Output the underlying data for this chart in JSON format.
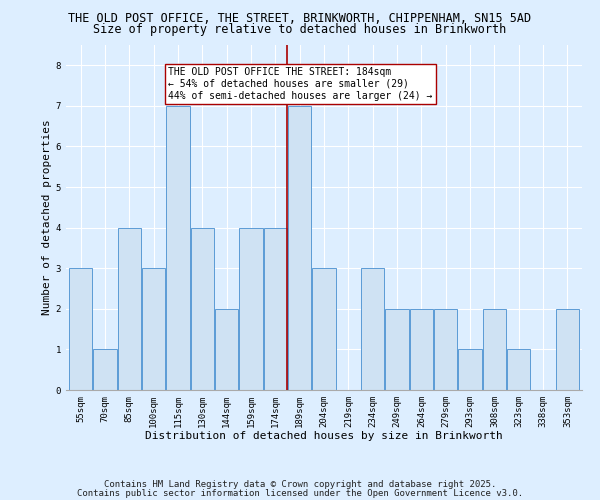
{
  "title1": "THE OLD POST OFFICE, THE STREET, BRINKWORTH, CHIPPENHAM, SN15 5AD",
  "title2": "Size of property relative to detached houses in Brinkworth",
  "xlabel": "Distribution of detached houses by size in Brinkworth",
  "ylabel": "Number of detached properties",
  "categories": [
    "55sqm",
    "70sqm",
    "85sqm",
    "100sqm",
    "115sqm",
    "130sqm",
    "144sqm",
    "159sqm",
    "174sqm",
    "189sqm",
    "204sqm",
    "219sqm",
    "234sqm",
    "249sqm",
    "264sqm",
    "279sqm",
    "293sqm",
    "308sqm",
    "323sqm",
    "338sqm",
    "353sqm"
  ],
  "values": [
    3,
    1,
    4,
    3,
    7,
    4,
    2,
    4,
    4,
    7,
    3,
    0,
    3,
    2,
    2,
    2,
    1,
    2,
    1,
    0,
    2
  ],
  "bar_color": "#cfe2f3",
  "bar_edge_color": "#5b9bd5",
  "red_line_x": 8.5,
  "ylim": [
    0,
    8.5
  ],
  "yticks": [
    0,
    1,
    2,
    3,
    4,
    5,
    6,
    7,
    8
  ],
  "annotation_text_line1": "THE OLD POST OFFICE THE STREET: 184sqm",
  "annotation_text_line2": "← 54% of detached houses are smaller (29)",
  "annotation_text_line3": "44% of semi-detached houses are larger (24) →",
  "red_line_color": "#aa0000",
  "footnote1": "Contains HM Land Registry data © Crown copyright and database right 2025.",
  "footnote2": "Contains public sector information licensed under the Open Government Licence v3.0.",
  "background_color": "#ddeeff",
  "plot_bg_color": "#ddeeff",
  "grid_color": "#ffffff",
  "title_fontsize": 8.5,
  "subtitle_fontsize": 8.5,
  "tick_fontsize": 6.5,
  "xlabel_fontsize": 8,
  "ylabel_fontsize": 8,
  "annotation_fontsize": 7,
  "footnote_fontsize": 6.5
}
